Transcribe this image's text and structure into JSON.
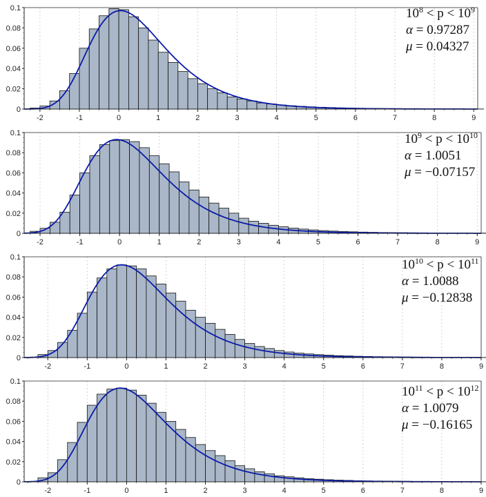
{
  "style": {
    "bar_fill": "#a9b7c8",
    "bar_stroke": "#111111",
    "curve_color": "#0a1aa8",
    "axis_color": "#222222",
    "grid_color": "#c8c8c8"
  },
  "chart_data": [
    {
      "type": "bar",
      "title": "10^8 < p < 10^9",
      "legend": {
        "range_base_lo": "10",
        "range_exp_lo": "8",
        "range_mid": " < p < ",
        "range_base_hi": "10",
        "range_exp_hi": "9",
        "alpha_label": "α",
        "alpha_value": "0.97287",
        "mu_label": "μ",
        "mu_value": "0.04327"
      },
      "xlim": [
        -2.4,
        9.1
      ],
      "ylim": [
        0,
        0.1
      ],
      "xticks": [
        "-2",
        "-1",
        "0",
        "1",
        "2",
        "3",
        "4",
        "5",
        "6",
        "7",
        "8",
        "9"
      ],
      "yticks": [
        "0",
        "0.02",
        "0.04",
        "0.06",
        "0.08",
        "0.1"
      ],
      "bin_start": -2.25,
      "bin_width": 0.25,
      "values": [
        0.001,
        0.003,
        0.008,
        0.018,
        0.035,
        0.06,
        0.079,
        0.092,
        0.099,
        0.098,
        0.091,
        0.08,
        0.068,
        0.056,
        0.046,
        0.037,
        0.03,
        0.025,
        0.02,
        0.016,
        0.012,
        0.01,
        0.008,
        0.006,
        0.005,
        0.004,
        0.0033,
        0.0027,
        0.0022,
        0.0018,
        0.0015,
        0.0012,
        0.001,
        0.0008,
        0.0007,
        0.0006,
        0.0005,
        0.0004,
        0.0004,
        0.0003,
        0.0003,
        0.0002,
        0.0002,
        0.0002,
        0.0001,
        0.0001
      ],
      "curve": {
        "mu": 0.04327,
        "alpha": 0.97287,
        "peak": 0.097
      }
    },
    {
      "type": "bar",
      "title": "10^9 < p < 10^10",
      "legend": {
        "range_base_lo": "10",
        "range_exp_lo": "9",
        "range_mid": " < p < ",
        "range_base_hi": "10",
        "range_exp_hi": "10",
        "alpha_label": "α",
        "alpha_value": "1.0051",
        "mu_label": "μ",
        "mu_value": "−0.07157"
      },
      "xlim": [
        -2.4,
        9.1
      ],
      "ylim": [
        0,
        0.1
      ],
      "xticks": [
        "-2",
        "-1",
        "0",
        "1",
        "2",
        "3",
        "4",
        "5",
        "6",
        "7",
        "8",
        "9"
      ],
      "yticks": [
        "0",
        "0.02",
        "0.04",
        "0.06",
        "0.08",
        "0.1"
      ],
      "bin_start": -2.25,
      "bin_width": 0.25,
      "values": [
        0.002,
        0.005,
        0.011,
        0.021,
        0.038,
        0.06,
        0.077,
        0.088,
        0.092,
        0.093,
        0.091,
        0.085,
        0.077,
        0.069,
        0.061,
        0.051,
        0.043,
        0.036,
        0.03,
        0.025,
        0.02,
        0.015,
        0.012,
        0.01,
        0.008,
        0.0065,
        0.0052,
        0.0042,
        0.0034,
        0.0027,
        0.0022,
        0.0018,
        0.0015,
        0.0012,
        0.001,
        0.0008,
        0.0007,
        0.0006,
        0.0005,
        0.0004,
        0.0004,
        0.0003,
        0.0003,
        0.0002,
        0.0002,
        0.0002
      ],
      "curve": {
        "mu": -0.07157,
        "alpha": 1.0051,
        "peak": 0.093
      }
    },
    {
      "type": "bar",
      "title": "10^10 < p < 10^11",
      "legend": {
        "range_base_lo": "10",
        "range_exp_lo": "10",
        "range_mid": " < p < ",
        "range_base_hi": "10",
        "range_exp_hi": "11",
        "alpha_label": "α",
        "alpha_value": "1.0088",
        "mu_label": "μ",
        "mu_value": "−0.12838"
      },
      "xlim": [
        -2.6,
        9.0
      ],
      "ylim": [
        0,
        0.1
      ],
      "xticks": [
        "-2",
        "-1",
        "0",
        "1",
        "2",
        "3",
        "4",
        "5",
        "6",
        "7",
        "8",
        "9"
      ],
      "yticks": [
        "0",
        "0.02",
        "0.04",
        "0.06",
        "0.08",
        "0.1"
      ],
      "bin_start": -2.25,
      "bin_width": 0.25,
      "values": [
        0.003,
        0.007,
        0.015,
        0.027,
        0.044,
        0.065,
        0.079,
        0.088,
        0.092,
        0.091,
        0.088,
        0.081,
        0.073,
        0.064,
        0.056,
        0.047,
        0.04,
        0.034,
        0.028,
        0.023,
        0.018,
        0.014,
        0.011,
        0.009,
        0.007,
        0.0055,
        0.0044,
        0.0036,
        0.0029,
        0.0024,
        0.0019,
        0.0016,
        0.0013,
        0.0011,
        0.0009,
        0.0008,
        0.0007,
        0.0006,
        0.0005,
        0.0004,
        0.0003,
        0.0003,
        0.0002,
        0.0002,
        0.0002,
        0.0001
      ],
      "curve": {
        "mu": -0.12838,
        "alpha": 1.0088,
        "peak": 0.092
      }
    },
    {
      "type": "bar",
      "title": "10^11 < p < 10^12",
      "legend": {
        "range_base_lo": "10",
        "range_exp_lo": "11",
        "range_mid": " < p < ",
        "range_base_hi": "10",
        "range_exp_hi": "12",
        "alpha_label": "α",
        "alpha_value": "1.0079",
        "mu_label": "μ",
        "mu_value": "−0.16165"
      },
      "xlim": [
        -2.6,
        9.0
      ],
      "ylim": [
        0,
        0.1
      ],
      "xticks": [
        "-2",
        "-1",
        "0",
        "1",
        "2",
        "3",
        "4",
        "5",
        "6",
        "7",
        "8",
        "9"
      ],
      "yticks": [
        "0",
        "0.02",
        "0.04",
        "0.06",
        "0.08",
        "0.1"
      ],
      "bin_start": -2.25,
      "bin_width": 0.25,
      "values": [
        0.004,
        0.009,
        0.022,
        0.039,
        0.059,
        0.076,
        0.087,
        0.092,
        0.093,
        0.091,
        0.086,
        0.078,
        0.069,
        0.06,
        0.052,
        0.044,
        0.037,
        0.031,
        0.026,
        0.021,
        0.016,
        0.013,
        0.01,
        0.008,
        0.006,
        0.005,
        0.004,
        0.0032,
        0.0026,
        0.0021,
        0.0017,
        0.0014,
        0.0011,
        0.0009,
        0.0008,
        0.0007,
        0.0006,
        0.0005,
        0.0004,
        0.0003,
        0.0003,
        0.0002,
        0.0002,
        0.0002,
        0.0001,
        0.0001
      ],
      "curve": {
        "mu": -0.16165,
        "alpha": 1.0079,
        "peak": 0.093
      }
    }
  ]
}
